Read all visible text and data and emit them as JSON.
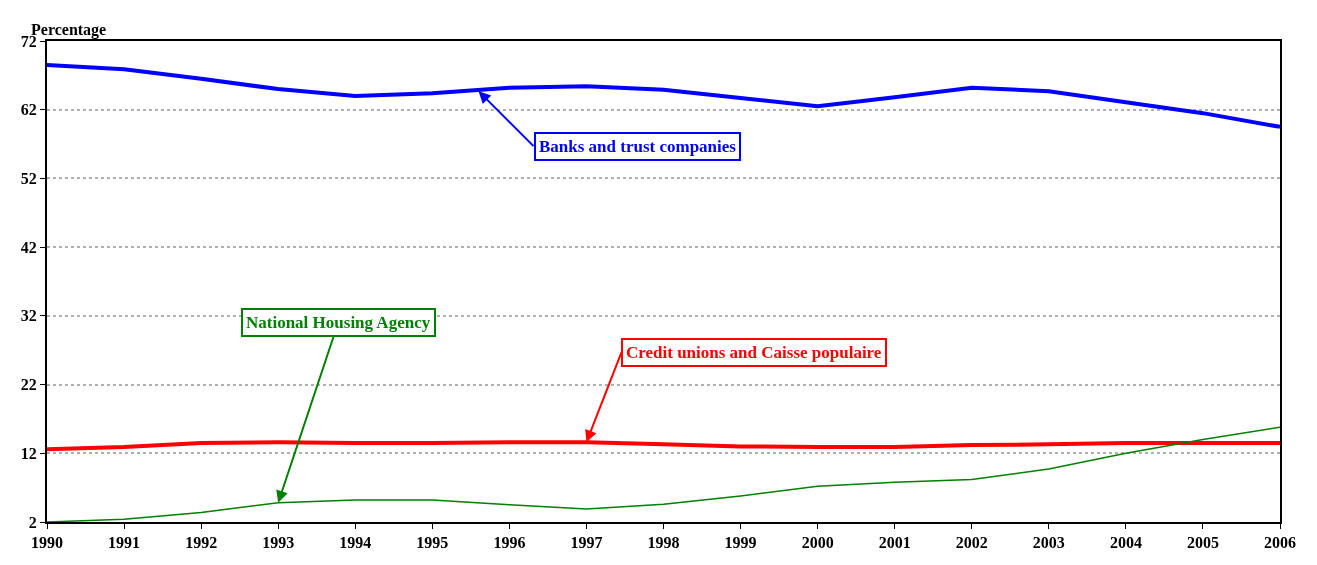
{
  "chart_data": {
    "type": "line",
    "ylabel": "Percentage",
    "x": [
      1990,
      1991,
      1992,
      1993,
      1994,
      1995,
      1996,
      1997,
      1998,
      1999,
      2000,
      2001,
      2002,
      2003,
      2004,
      2005,
      2006
    ],
    "series": [
      {
        "color": "#0000ff",
        "values": [
          68.5,
          67.9,
          66.5,
          65.0,
          64.0,
          64.4,
          65.2,
          65.4,
          64.9,
          63.7,
          62.5,
          63.8,
          65.2,
          64.7,
          63.1,
          61.5,
          59.5
        ]
      },
      {
        "color": "#ff0000",
        "values": [
          12.6,
          12.9,
          13.5,
          13.6,
          13.5,
          13.5,
          13.6,
          13.6,
          13.3,
          13.0,
          12.9,
          12.9,
          13.2,
          13.3,
          13.5,
          13.5,
          13.5
        ]
      },
      {
        "color": "#008000",
        "values": [
          2.0,
          2.4,
          3.4,
          4.8,
          5.2,
          5.2,
          4.5,
          3.9,
          4.6,
          5.8,
          7.2,
          7.8,
          8.2,
          9.7,
          12.0,
          14.0,
          15.8
        ]
      }
    ],
    "annotations": [
      {
        "text": "Banks and trust companies",
        "x": 1995.6,
        "y": 64.7
      },
      {
        "text": "Credit unions and Caisse populaire",
        "x": 1997,
        "y": 13.6
      },
      {
        "text": "National Housing Agency",
        "x": 1993,
        "y": 4.8
      }
    ],
    "xlim": [
      1990,
      2006
    ],
    "xticks": [
      1990,
      1991,
      1992,
      1993,
      1994,
      1995,
      1996,
      1997,
      1998,
      1999,
      2000,
      2001,
      2002,
      2003,
      2004,
      2005,
      2006
    ],
    "ylim": [
      2,
      72
    ],
    "yticks": [
      2,
      12,
      22,
      32,
      42,
      52,
      62,
      72
    ],
    "grid": "y",
    "legend": false,
    "marker": "none",
    "line_style": "solid"
  }
}
